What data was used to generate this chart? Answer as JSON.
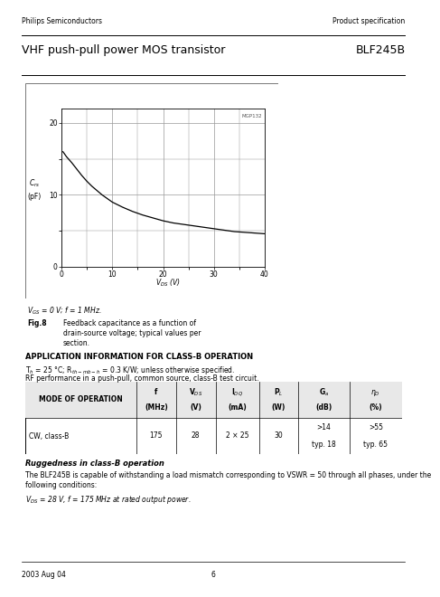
{
  "page_title_left": "Philips Semiconductors",
  "page_title_right": "Product specification",
  "doc_title_left": "VHF push-pull power MOS transistor",
  "doc_title_right": "BLF245B",
  "graph_annotation": "MGP132",
  "graph_ylabel_line1": "C",
  "graph_ylabel_sub": "rs",
  "graph_ylabel_line2": "(pF)",
  "graph_xlabel": "V",
  "graph_xlabel_sub": "DS",
  "graph_xlabel_unit": " (V)",
  "y_ticks": [
    0,
    10,
    20
  ],
  "x_ticks": [
    0,
    10,
    20,
    30,
    40
  ],
  "ylim": [
    0,
    22
  ],
  "xlim": [
    0,
    40
  ],
  "curve_x": [
    0.3,
    0.5,
    1,
    2,
    3,
    4,
    5,
    6,
    7,
    8,
    9,
    10,
    12,
    14,
    16,
    18,
    20,
    22,
    24,
    26,
    28,
    30,
    32,
    34,
    36,
    38,
    40
  ],
  "curve_y": [
    16.0,
    15.8,
    15.3,
    14.5,
    13.6,
    12.7,
    11.9,
    11.2,
    10.6,
    10.0,
    9.5,
    9.0,
    8.3,
    7.7,
    7.2,
    6.8,
    6.4,
    6.1,
    5.9,
    5.7,
    5.5,
    5.3,
    5.1,
    4.9,
    4.8,
    4.7,
    4.6
  ],
  "vgs_condition": "V$_{GS}$ = 0 V; f = 1 MHz.",
  "fig_label": "Fig.8",
  "fig_caption_line1": "Feedback capacitance as a function of",
  "fig_caption_line2": "drain-source voltage; typical values per",
  "fig_caption_line3": "section.",
  "app_title": "APPLICATION INFORMATION FOR CLASS-B OPERATION",
  "app_cond1": "T$_h$ = 25 °C; R$_{th-mb-h}$ = 0.3 K/W; unless otherwise specified.",
  "app_cond2": "RF performance in a push-pull, common source, class-B test circuit.",
  "col_widths": [
    0.295,
    0.105,
    0.105,
    0.115,
    0.105,
    0.135,
    0.14
  ],
  "table_header_row1": [
    "MODE OF OPERATION",
    "f",
    "V$_{DS}$",
    "I$_{DQ}$",
    "P$_L$",
    "G$_a$",
    "$\\eta_D$"
  ],
  "table_header_row2": [
    "",
    "(MHz)",
    "(V)",
    "(mA)",
    "(W)",
    "(dB)",
    "(%)"
  ],
  "table_data": [
    "CW, class-B",
    "175",
    "28",
    "2 × 25",
    "30",
    ">14\ntyp. 18",
    ">55\ntyp. 65"
  ],
  "ruggedness_title": "Ruggedness in class-B operation",
  "ruggedness_text1": "The BLF245B is capable of withstanding a load mismatch corresponding to VSWR = 50 through all phases, under the",
  "ruggedness_text2": "following conditions:",
  "rug_cond": "V$_{DS}$ = 28 V, f = 175 MHz at rated output power.",
  "footer_left": "2003 Aug 04",
  "footer_center": "6"
}
